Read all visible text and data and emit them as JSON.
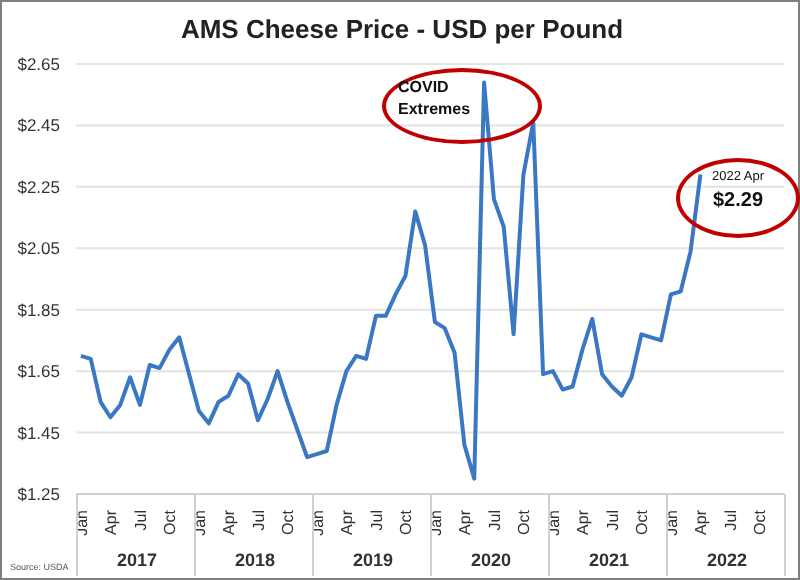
{
  "chart_data": {
    "type": "line",
    "title": "AMS Cheese Price - USD per Pound",
    "categories": [
      "Jan",
      null,
      null,
      "Apr",
      null,
      null,
      "Jul",
      null,
      null,
      "Oct",
      null,
      null,
      "Jan",
      null,
      null,
      "Apr",
      null,
      null,
      "Jul",
      null,
      null,
      "Oct",
      null,
      null,
      "Jan",
      null,
      null,
      "Apr",
      null,
      null,
      "Jul",
      null,
      null,
      "Oct",
      null,
      null,
      "Jan",
      null,
      null,
      "Apr",
      null,
      null,
      "Jul",
      null,
      null,
      "Oct",
      null,
      null,
      "Jan",
      null,
      null,
      "Apr",
      null,
      null,
      "Jul",
      null,
      null,
      "Oct",
      null,
      null,
      "Jan",
      null,
      null,
      "Apr",
      null,
      null,
      "Jul",
      null,
      null,
      "Oct",
      null,
      null
    ],
    "series": [
      {
        "color": "#3a78c3",
        "values": [
          1.7,
          1.69,
          1.55,
          1.5,
          1.54,
          1.63,
          1.54,
          1.67,
          1.66,
          1.72,
          1.76,
          1.64,
          1.52,
          1.48,
          1.55,
          1.57,
          1.64,
          1.61,
          1.49,
          1.56,
          1.65,
          1.55,
          1.46,
          1.37,
          1.38,
          1.39,
          1.54,
          1.65,
          1.7,
          1.69,
          1.83,
          1.83,
          1.9,
          1.96,
          2.17,
          2.06,
          1.81,
          1.79,
          1.71,
          1.41,
          1.3,
          2.59,
          2.21,
          2.12,
          1.77,
          2.29,
          2.46,
          1.64,
          1.65,
          1.59,
          1.6,
          1.72,
          1.82,
          1.64,
          1.6,
          1.57,
          1.63,
          1.77,
          1.76,
          1.75,
          1.9,
          1.91,
          2.04,
          2.29,
          null,
          null,
          null,
          null,
          null,
          null,
          null,
          null
        ]
      }
    ],
    "ylim": [
      1.25,
      2.65
    ],
    "yticks": [
      {
        "value": 1.25,
        "label": "$1.25"
      },
      {
        "value": 1.45,
        "label": "$1.45"
      },
      {
        "value": 1.65,
        "label": "$1.65"
      },
      {
        "value": 1.85,
        "label": "$1.85"
      },
      {
        "value": 2.05,
        "label": "$2.05"
      },
      {
        "value": 2.25,
        "label": "$2.25"
      },
      {
        "value": 2.45,
        "label": "$2.45"
      },
      {
        "value": 2.65,
        "label": "$2.65"
      }
    ],
    "grid": "y",
    "marker": "none",
    "line_style": "solid",
    "annotations": [
      "2017",
      "2018",
      "2019",
      "2020",
      "2021",
      "2022",
      "COVID Extremes",
      "2022 Apr",
      "$2.29",
      "Source: USDA"
    ]
  }
}
